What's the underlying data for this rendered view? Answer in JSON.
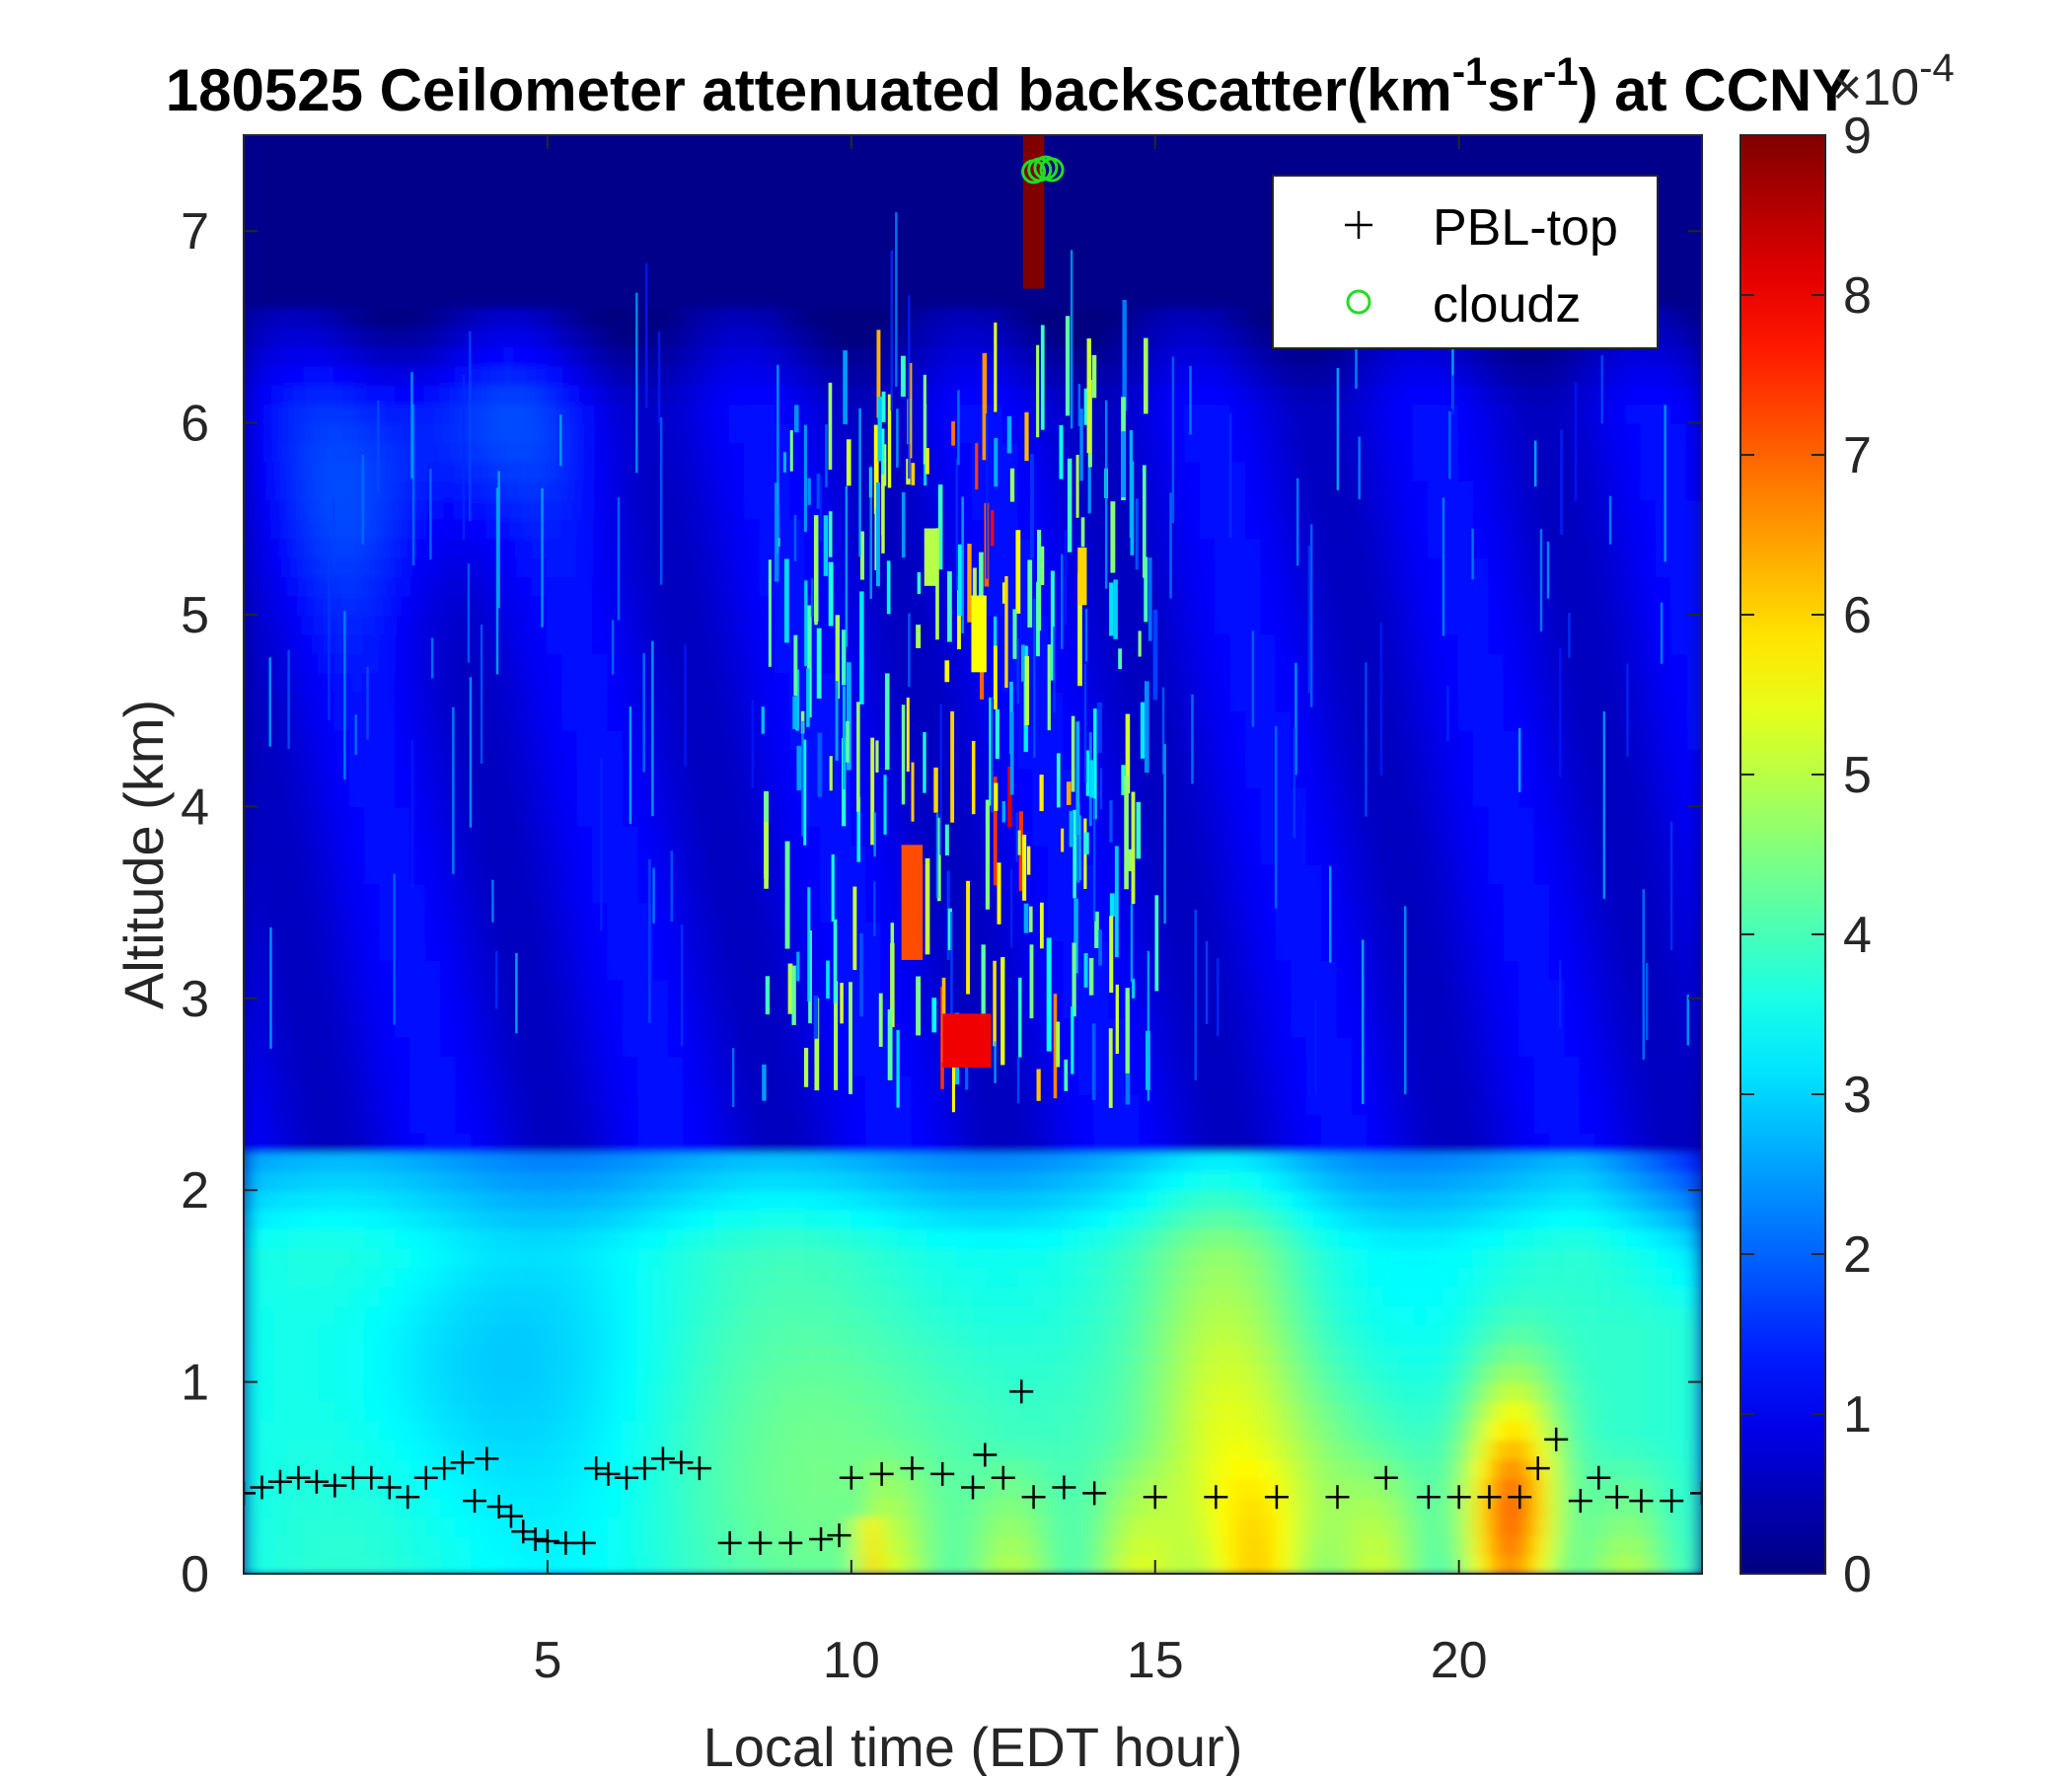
{
  "chart_data": {
    "type": "heatmap",
    "title_prefix": "180525 Ceilometer attenuated backscatter(km",
    "title_sup1": "-1",
    "title_mid": "sr",
    "title_sup2": "-1",
    "title_suffix": ") at CCNY",
    "xlabel": "Local time (EDT hour)",
    "ylabel": "Altitude (km)",
    "xlim": [
      0,
      24
    ],
    "ylim": [
      0,
      7.5
    ],
    "xticks": [
      5,
      10,
      15,
      20
    ],
    "yticks": [
      0,
      1,
      2,
      3,
      4,
      5,
      6,
      7
    ],
    "colorbar": {
      "colormap": "jet",
      "range": [
        0,
        9
      ],
      "ticks": [
        0,
        1,
        2,
        3,
        4,
        5,
        6,
        7,
        8,
        9
      ],
      "exponent_base": "×10",
      "exponent_power": "-4"
    },
    "legend": {
      "placement": "top-right",
      "entries": [
        {
          "name": "PBL-top",
          "marker": "+",
          "color": "#000000"
        },
        {
          "name": "cloudz",
          "marker": "o",
          "color": "#22dd22"
        }
      ]
    },
    "series": [
      {
        "name": "PBL-top",
        "x": [
          0.0,
          0.3,
          0.6,
          0.9,
          1.2,
          1.5,
          1.8,
          2.1,
          2.4,
          2.7,
          3.0,
          3.3,
          3.6,
          3.8,
          4.0,
          4.2,
          4.4,
          4.6,
          4.8,
          5.0,
          5.3,
          5.6,
          5.8,
          6.0,
          6.3,
          6.6,
          6.9,
          7.2,
          7.5,
          8.0,
          8.5,
          9.0,
          9.5,
          9.8,
          10.0,
          10.5,
          11.0,
          11.5,
          12.0,
          12.2,
          12.5,
          12.8,
          13.0,
          13.5,
          14.0,
          15.0,
          16.0,
          17.0,
          18.0,
          18.8,
          19.5,
          20.0,
          20.5,
          21.0,
          21.3,
          21.6,
          22.0,
          22.3,
          22.6,
          23.0,
          23.5,
          24.0
        ],
        "y": [
          0.42,
          0.45,
          0.48,
          0.5,
          0.48,
          0.46,
          0.5,
          0.5,
          0.45,
          0.4,
          0.5,
          0.55,
          0.58,
          0.38,
          0.6,
          0.35,
          0.3,
          0.22,
          0.18,
          0.17,
          0.16,
          0.16,
          0.55,
          0.52,
          0.5,
          0.55,
          0.6,
          0.58,
          0.55,
          0.16,
          0.16,
          0.16,
          0.18,
          0.2,
          0.5,
          0.52,
          0.55,
          0.52,
          0.45,
          0.62,
          0.5,
          0.95,
          0.4,
          0.45,
          0.42,
          0.4,
          0.4,
          0.4,
          0.4,
          0.5,
          0.4,
          0.4,
          0.4,
          0.4,
          0.55,
          0.7,
          0.38,
          0.5,
          0.4,
          0.38,
          0.38,
          0.42
        ]
      },
      {
        "name": "cloudz",
        "x": [
          13.0,
          13.1,
          13.2,
          13.3
        ],
        "y": [
          7.31,
          7.32,
          7.33,
          7.32
        ]
      }
    ]
  }
}
